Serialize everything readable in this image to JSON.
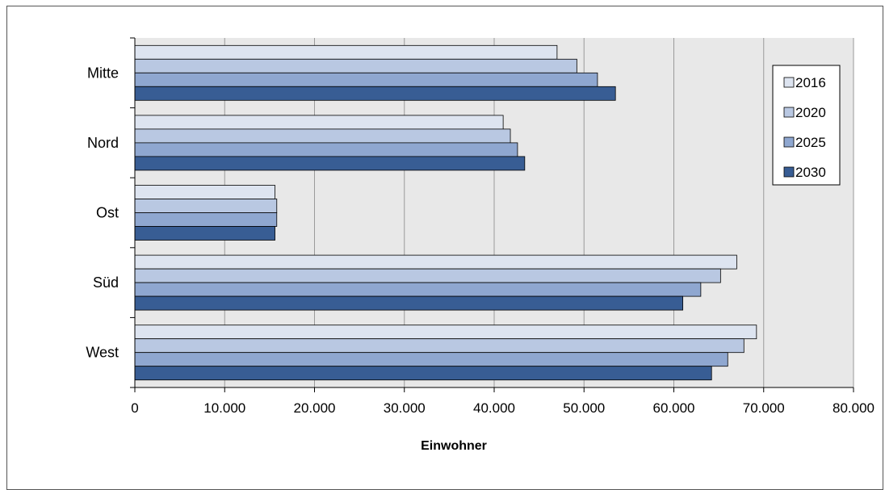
{
  "chart_data": {
    "type": "bar",
    "orientation": "horizontal",
    "categories": [
      "Mitte",
      "Nord",
      "Ost",
      "Süd",
      "West"
    ],
    "series": [
      {
        "name": "2016",
        "color": "#dde4f0",
        "values": [
          47000,
          41000,
          15600,
          67000,
          69200
        ]
      },
      {
        "name": "2020",
        "color": "#b9c8e2",
        "values": [
          49200,
          41800,
          15800,
          65200,
          67800
        ]
      },
      {
        "name": "2025",
        "color": "#8fa7d0",
        "values": [
          51500,
          42600,
          15800,
          63000,
          66000
        ]
      },
      {
        "name": "2030",
        "color": "#385d94",
        "values": [
          53500,
          43400,
          15600,
          61000,
          64200
        ]
      }
    ],
    "xlim": [
      0,
      80000
    ],
    "xticks": [
      0,
      10000,
      20000,
      30000,
      40000,
      50000,
      60000,
      70000,
      80000
    ],
    "xtick_labels": [
      "0",
      "10.000",
      "20.000",
      "30.000",
      "40.000",
      "50.000",
      "60.000",
      "70.000",
      "80.000"
    ],
    "xlabel": "Einwohner",
    "ylabel": "",
    "title": "",
    "grid": true,
    "plot_background": "#e8e8e8",
    "legend_position": "right"
  }
}
